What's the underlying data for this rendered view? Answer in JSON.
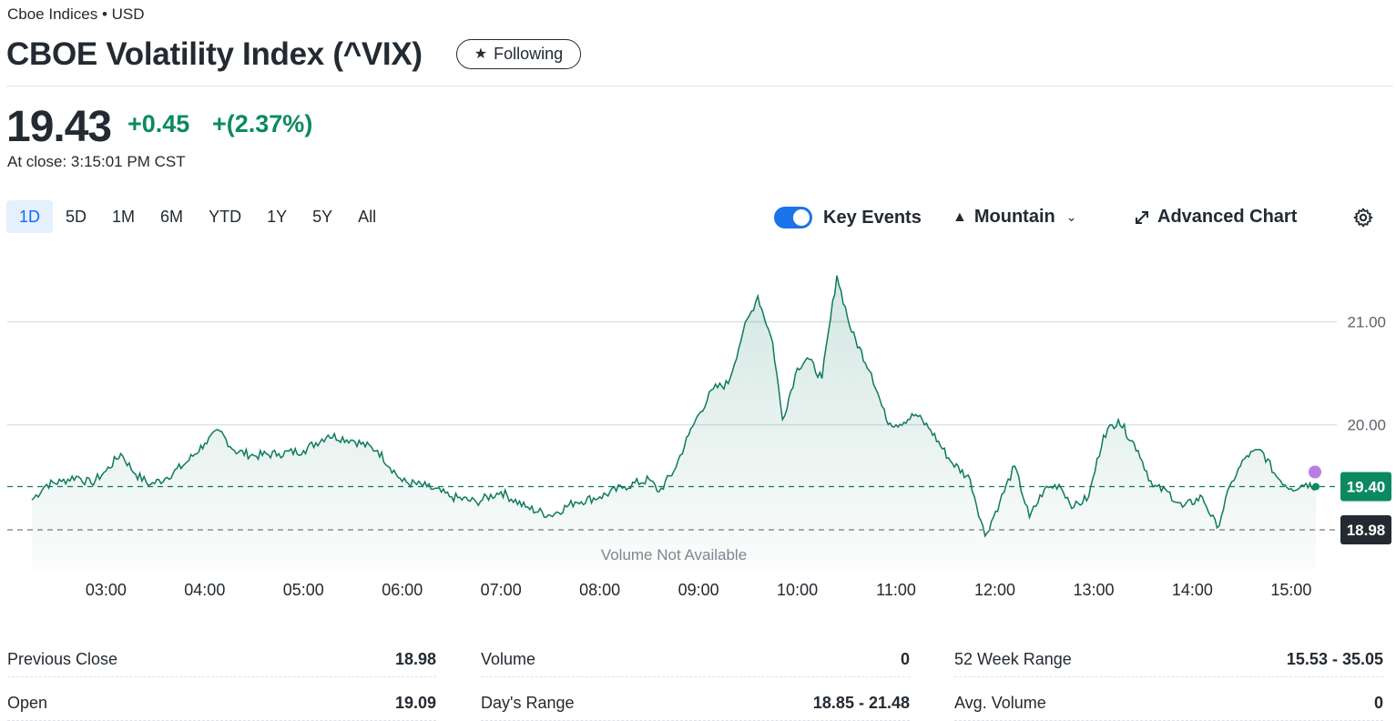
{
  "header": {
    "exchange": "Cboe Indices • USD",
    "title": "CBOE Volatility Index (^VIX)",
    "follow_label": "Following"
  },
  "quote": {
    "price": "19.43",
    "change": "+0.45",
    "change_pct": "+(2.37%)",
    "close_time": "At close: 3:15:01 PM CST"
  },
  "range_tabs": [
    {
      "label": "1D",
      "active": true
    },
    {
      "label": "5D",
      "active": false
    },
    {
      "label": "1M",
      "active": false
    },
    {
      "label": "6M",
      "active": false
    },
    {
      "label": "YTD",
      "active": false
    },
    {
      "label": "1Y",
      "active": false
    },
    {
      "label": "5Y",
      "active": false
    },
    {
      "label": "All",
      "active": false
    }
  ],
  "toolbar": {
    "key_events_label": "Key Events",
    "key_events_on": true,
    "chart_type_label": "Mountain",
    "advanced_label": "Advanced Chart"
  },
  "colors": {
    "up": "#0b8a62",
    "line": "#0e7a5e",
    "accent": "#1a73e8",
    "event_dot": "#b97ee6",
    "prev_close_tag": "#232a31"
  },
  "chart_data": {
    "type": "area",
    "x_ticks": [
      "03:00",
      "04:00",
      "05:00",
      "06:00",
      "07:00",
      "08:00",
      "09:00",
      "10:00",
      "11:00",
      "12:00",
      "13:00",
      "14:00",
      "15:00"
    ],
    "y_ticks": [
      "21.00",
      "20.00"
    ],
    "ylim": [
      18.6,
      21.65
    ],
    "x_range_hours": [
      2.25,
      15.25
    ],
    "series": [
      {
        "x": [
          2.25,
          2.4,
          2.55,
          2.7,
          2.85,
          3.0,
          3.15,
          3.3,
          3.45,
          3.6,
          3.8,
          4.0,
          4.15,
          4.3,
          4.5,
          4.75,
          5.0,
          5.25,
          5.5,
          5.75,
          6.0,
          6.25,
          6.5,
          6.75,
          7.0,
          7.25,
          7.5,
          7.75,
          8.0,
          8.25,
          8.5,
          8.6,
          8.75,
          8.9,
          9.0,
          9.15,
          9.3,
          9.45,
          9.6,
          9.75,
          9.85,
          10.0,
          10.1,
          10.25,
          10.4,
          10.55,
          10.75,
          10.9,
          11.0,
          11.2,
          11.35,
          11.55,
          11.75,
          11.9,
          12.05,
          12.2,
          12.35,
          12.5,
          12.65,
          12.8,
          12.95,
          13.1,
          13.25,
          13.45,
          13.6,
          13.75,
          13.9,
          14.1,
          14.25,
          14.4,
          14.55,
          14.7,
          14.85,
          15.0,
          15.15,
          15.25
        ],
        "values": [
          19.27,
          19.42,
          19.45,
          19.5,
          19.43,
          19.55,
          19.72,
          19.52,
          19.42,
          19.48,
          19.62,
          19.82,
          19.94,
          19.75,
          19.7,
          19.72,
          19.75,
          19.9,
          19.85,
          19.75,
          19.45,
          19.4,
          19.3,
          19.25,
          19.35,
          19.2,
          19.12,
          19.25,
          19.3,
          19.4,
          19.47,
          19.35,
          19.55,
          19.9,
          20.1,
          20.35,
          20.4,
          20.9,
          21.25,
          20.8,
          20.05,
          20.55,
          20.65,
          20.45,
          21.45,
          20.9,
          20.5,
          20.05,
          20.0,
          20.1,
          19.95,
          19.65,
          19.47,
          18.92,
          19.25,
          19.6,
          19.1,
          19.37,
          19.42,
          19.2,
          19.3,
          19.9,
          20.05,
          19.75,
          19.4,
          19.35,
          19.2,
          19.3,
          19.0,
          19.45,
          19.7,
          19.75,
          19.5,
          19.38,
          19.43,
          19.4
        ]
      }
    ],
    "current_value_label": "19.40",
    "previous_close_label": "18.98",
    "previous_close_value": 18.98,
    "current_value": 19.4,
    "volume_note": "Volume Not Available"
  },
  "stats": {
    "col1": [
      {
        "label": "Previous Close",
        "value": "18.98"
      },
      {
        "label": "Open",
        "value": "19.09"
      }
    ],
    "col2": [
      {
        "label": "Volume",
        "value": "0"
      },
      {
        "label": "Day's Range",
        "value": "18.85 - 21.48"
      }
    ],
    "col3": [
      {
        "label": "52 Week Range",
        "value": "15.53 - 35.05"
      },
      {
        "label": "Avg. Volume",
        "value": "0"
      }
    ]
  }
}
